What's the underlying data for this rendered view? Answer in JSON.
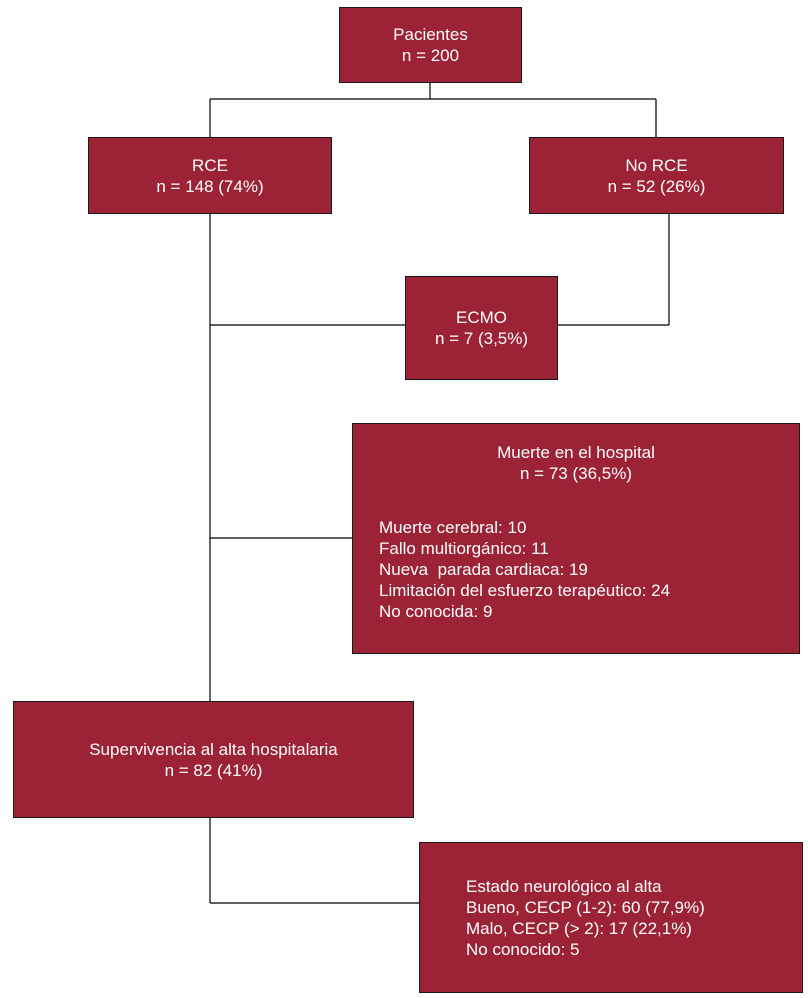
{
  "diagram": {
    "pacientes": {
      "label": "Pacientes",
      "count": "n = 200"
    },
    "rce": {
      "label": "RCE",
      "count": "n = 148 (74%)"
    },
    "no_rce": {
      "label": "No RCE",
      "count": "n = 52 (26%)"
    },
    "ecmo": {
      "label": "ECMO",
      "count": "n = 7 (3,5%)"
    },
    "muerte": {
      "label": "Muerte en el hospital",
      "count": "n = 73 (36,5%)",
      "causes": [
        "Muerte cerebral: 10",
        "Fallo multiorgánico: 11",
        "Nueva  parada cardiaca: 19",
        "Limitación del esfuerzo terapéutico: 24",
        "No conocida: 9"
      ]
    },
    "supervivencia": {
      "label": "Supervivencia al alta hospitalaria",
      "count": "n = 82 (41%)"
    },
    "neuro": {
      "lines": [
        "Estado neurológico al alta",
        "Bueno, CECP (1-2): 60 (77,9%)",
        "Malo, CECP (> 2): 17 (22,1%)",
        "No conocido: 5"
      ]
    }
  },
  "colors": {
    "box_fill": "#9b2335",
    "box_text": "#ffffff",
    "line": "#000000"
  }
}
